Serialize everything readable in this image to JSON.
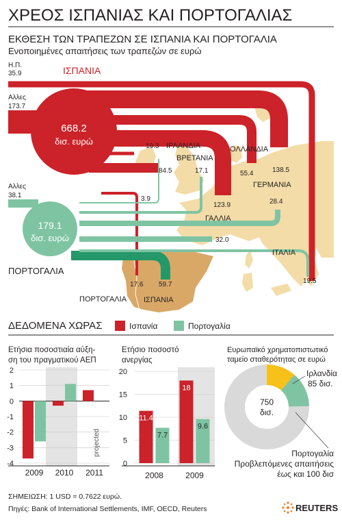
{
  "header": {
    "title": "ΧΡΕΟΣ ΙΣΠΑΝΙΑΣ ΚΑΙ ΠΟΡΤΟΓΑΛΙΑΣ",
    "subtitle": "ΕΚΘΕΣΗ ΤΩΝ ΤΡΑΠΕΖΩΝ ΣΕ ΙΣΠΑΝΙΑ ΚΑΙ ΠΟΡΤΟΓΑΛΙΑ",
    "note": "Ενοποιημένες απαιτήσεις των τραπεζών σε ευρώ"
  },
  "colors": {
    "spain": "#cc2229",
    "portugal": "#7fc4a2",
    "map_land": "#f3dca8",
    "map_spain": "#d9a867",
    "grey_panel": "#e4e4e4",
    "pie_grey": "#d9d9d9",
    "ireland": "#f6c21a",
    "text": "#231f20"
  },
  "chart_data": [
    {
      "type": "flow-map",
      "title": "ΕΚΘΕΣΗ ΤΩΝ ΤΡΑΠΕΖΩΝ ΣΕ ΙΣΠΑΝΙΑ ΚΑΙ ΠΟΡΤΟΓΑΛΙΑ",
      "units": "Ενοποιημένες απαιτήσεις των τραπεζών σε ευρώ",
      "totals": {
        "spain": {
          "label": "ΙΣΠΑΝΙΑ",
          "value": "668.2",
          "unit": "δισ. ευρώ"
        },
        "portugal": {
          "label": "ΠΟΡΤΟΓΑΛΙΑ",
          "value": "179.1",
          "unit": "δισ. ευρώ"
        }
      },
      "spain_sources": [
        {
          "label": "Η.Π.",
          "value": "35.9"
        },
        {
          "label": "Αλλες",
          "value": "173.7"
        },
        {
          "label": "ΙΡΛΑΝΔΙΑ",
          "value": "19.3"
        },
        {
          "label": "ΒΡΕΤΑΝΙΑ",
          "value": "84.5"
        },
        {
          "label": "ΟΛΛΑΝΔΙΑ",
          "value": "55.4"
        },
        {
          "label": "ΓΕΡΜΑΝΙΑ",
          "value": "138.5"
        },
        {
          "label": "ΓΑΛΛΙΑ",
          "value": "123.9"
        },
        {
          "label": "ΠΟΡΤΟΓΑΛΙΑ",
          "value": "17.6"
        }
      ],
      "portugal_sources": [
        {
          "label": "Αλλες",
          "value": "38.1"
        },
        {
          "label": "ΙΡΛΑΝΔΙΑ",
          "value": "3.9"
        },
        {
          "label": "ΒΡΕΤΑΝΙΑ",
          "value": "17.1"
        },
        {
          "label": "ΓΕΡΜΑΝΙΑ",
          "value": "28.4"
        },
        {
          "label": "ΓΑΛΛΙΑ",
          "value": "32.0"
        },
        {
          "label": "ΙΣΠΑΝΙΑ",
          "value": "59.7"
        },
        {
          "label": "ΙΤΑΛΙΑ",
          "value": "19.5"
        }
      ],
      "map_labels": [
        "ΙΡΛΑΝΔΙΑ",
        "ΒΡΕΤΑΝΙΑ",
        "ΟΛΛΑΝΔΙΑ",
        "ΓΕΡΜΑΝΙΑ",
        "ΓΑΛΛΙΑ",
        "ΙΤΑΛΙΑ",
        "ΠΟΡΤΟΓΑΛΙΑ",
        "ΙΣΠΑΝΙΑ"
      ]
    },
    {
      "type": "bar",
      "title": "Ετήσια ποσοστιαία αύξηση του πραγματικού ΑΕΠ",
      "title_lines": [
        "Ετήσια ποσοστιαία αύξη-",
        "ση του πραγματικού ΑΕΠ"
      ],
      "categories": [
        "2009",
        "2010",
        "2011"
      ],
      "series": [
        {
          "name": "Ισπανία",
          "values": [
            -3.7,
            -0.3,
            0.7
          ]
        },
        {
          "name": "Πορτογαλία",
          "values": [
            -2.6,
            1.1,
            null
          ]
        }
      ],
      "ylim": [
        -4,
        2
      ],
      "yticks": [
        "2",
        "1",
        "0",
        "-1",
        "-2",
        "-3",
        "-4"
      ],
      "annotation": "projected"
    },
    {
      "type": "bar",
      "title": "Ετήσιο ποσοστό ανεργίας",
      "title_lines": [
        "Ετήσιο ποσοστό",
        "ανεργίας"
      ],
      "categories": [
        "2008",
        "2009"
      ],
      "series": [
        {
          "name": "Ισπανία",
          "values": [
            11.4,
            18
          ]
        },
        {
          "name": "Πορτογαλία",
          "values": [
            7.7,
            9.6
          ]
        }
      ],
      "value_labels": [
        [
          "11.4",
          "18"
        ],
        [
          "7.7",
          "9.6"
        ]
      ],
      "ylim": [
        0,
        20
      ],
      "yticks": [
        "20",
        "15",
        "10",
        "5",
        "0"
      ]
    },
    {
      "type": "pie",
      "title": "Ευρωπαϊκό χρηματοπιστωτικό ταμείο σταθερότητας σε ευρώ",
      "title_lines": [
        "Ευρωπαϊκό χρηματοπιστωτικό",
        "ταμείο σταθερότητας σε ευρώ"
      ],
      "total": 750,
      "center_lines": [
        "750",
        "δισ."
      ],
      "slices": [
        {
          "name": "Ιρλανδία",
          "value": 85,
          "label_lines": [
            "Ιρλανδία",
            "85 δισ."
          ]
        },
        {
          "name": "Πορτογαλία",
          "value": 100,
          "label_lines": [
            "Πορτογαλία",
            "Προβλεπόμενες απαιτήσεις",
            "έως και 100 δισ"
          ]
        }
      ]
    }
  ],
  "country_data": {
    "heading": "ΔΕΔΟΜΕΝΑ ΧΩΡΑΣ",
    "legend": [
      {
        "name": "Ισπανία",
        "color": "#cc2229"
      },
      {
        "name": "Πορτογαλία",
        "color": "#7fc4a2"
      }
    ]
  },
  "footer": {
    "note": "ΣΗΜΕΙΩΣΗ: 1 USD = 0.7622 ευρώ.",
    "sources": "Πηγές: Bank of International Settlements, IMF, OECD, Reuters",
    "brand": "REUTERS"
  }
}
